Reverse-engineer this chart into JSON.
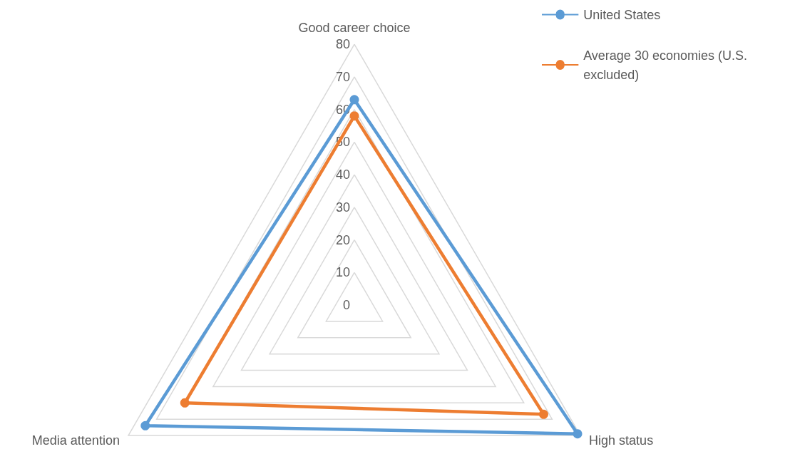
{
  "chart_data": {
    "type": "radar",
    "categories": [
      "Good career choice",
      "High status",
      "Media attention"
    ],
    "series": [
      {
        "name": "United States",
        "color": "#5b9bd5",
        "values": [
          63,
          79,
          74
        ]
      },
      {
        "name": "Average 30 economies (U.S. excluded)",
        "color": "#ed7d31",
        "values": [
          58,
          67,
          60
        ]
      }
    ],
    "ylim": [
      0,
      80
    ],
    "yticks": [
      0,
      10,
      20,
      30,
      40,
      50,
      60,
      70,
      80
    ],
    "legend": "top right",
    "marker": "circle",
    "line_style": "solid",
    "grid": true
  }
}
